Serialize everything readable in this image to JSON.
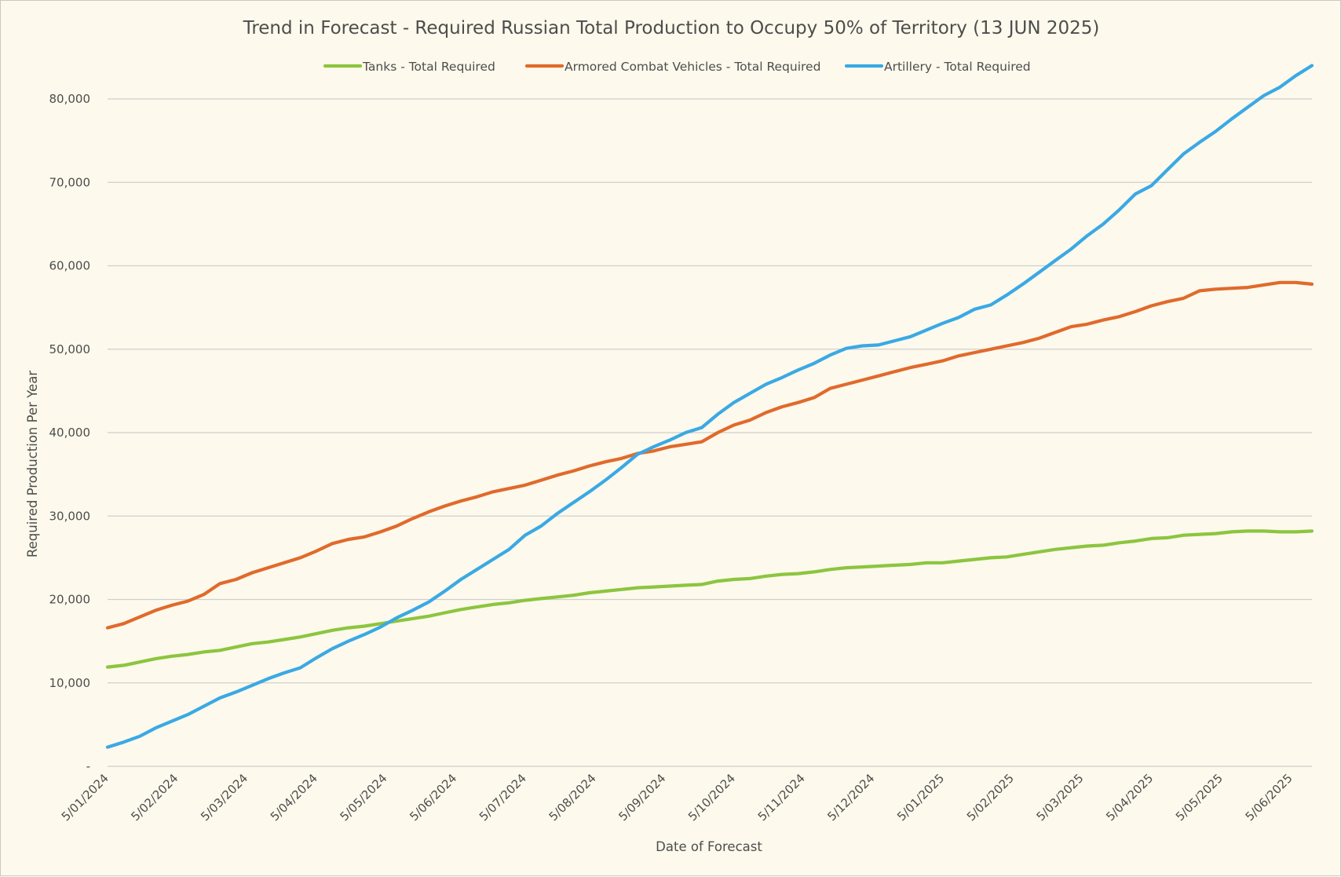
{
  "chart_data": {
    "type": "line",
    "title": "Trend in Forecast - Required Russian Total Production to Occupy 50% of Territory (13 JUN 2025)",
    "xlabel": "Date of Forecast",
    "ylabel": "Required Production Per Year",
    "ylim": [
      0,
      80000
    ],
    "yticks": [
      {
        "value": 0,
        "label": "-"
      },
      {
        "value": 10000,
        "label": "10,000"
      },
      {
        "value": 20000,
        "label": "20,000"
      },
      {
        "value": 30000,
        "label": "30,000"
      },
      {
        "value": 40000,
        "label": "40,000"
      },
      {
        "value": 50000,
        "label": "50,000"
      },
      {
        "value": 60000,
        "label": "60,000"
      },
      {
        "value": 70000,
        "label": "70,000"
      },
      {
        "value": 80000,
        "label": "80,000"
      }
    ],
    "xtick_labels": [
      "5/01/2024",
      "5/02/2024",
      "5/03/2024",
      "5/04/2024",
      "5/05/2024",
      "5/06/2024",
      "5/07/2024",
      "5/08/2024",
      "5/09/2024",
      "5/10/2024",
      "5/11/2024",
      "5/12/2024",
      "5/01/2025",
      "5/02/2025",
      "5/03/2025",
      "5/04/2025",
      "5/05/2025",
      "5/06/2025"
    ],
    "legend_position": "top",
    "grid": true,
    "categories": [
      "5/01/2024",
      "12/01/2024",
      "19/01/2024",
      "26/01/2024",
      "2/02/2024",
      "9/02/2024",
      "16/02/2024",
      "23/02/2024",
      "1/03/2024",
      "8/03/2024",
      "15/03/2024",
      "22/03/2024",
      "29/03/2024",
      "5/04/2024",
      "12/04/2024",
      "19/04/2024",
      "26/04/2024",
      "3/05/2024",
      "10/05/2024",
      "17/05/2024",
      "24/05/2024",
      "31/05/2024",
      "7/06/2024",
      "14/06/2024",
      "21/06/2024",
      "28/06/2024",
      "5/07/2024",
      "12/07/2024",
      "19/07/2024",
      "26/07/2024",
      "2/08/2024",
      "9/08/2024",
      "16/08/2024",
      "23/08/2024",
      "30/08/2024",
      "6/09/2024",
      "13/09/2024",
      "20/09/2024",
      "27/09/2024",
      "4/10/2024",
      "11/10/2024",
      "18/10/2024",
      "25/10/2024",
      "1/11/2024",
      "8/11/2024",
      "15/11/2024",
      "22/11/2024",
      "29/11/2024",
      "6/12/2024",
      "13/12/2024",
      "20/12/2024",
      "27/12/2024",
      "3/01/2025",
      "10/01/2025",
      "17/01/2025",
      "24/01/2025",
      "31/01/2025",
      "7/02/2025",
      "14/02/2025",
      "21/02/2025",
      "28/02/2025",
      "7/03/2025",
      "14/03/2025",
      "21/03/2025",
      "28/03/2025",
      "4/04/2025",
      "11/04/2025",
      "18/04/2025",
      "25/04/2025",
      "2/05/2025",
      "9/05/2025",
      "16/05/2025",
      "23/05/2025",
      "30/05/2025",
      "6/06/2025",
      "13/06/2025"
    ],
    "series": [
      {
        "name": "Tanks - Total Required",
        "color": "#8cc53f",
        "values": [
          11900,
          12100,
          12500,
          12900,
          13200,
          13400,
          13700,
          13900,
          14300,
          14700,
          14900,
          15200,
          15500,
          15900,
          16300,
          16600,
          16800,
          17100,
          17400,
          17700,
          18000,
          18400,
          18800,
          19100,
          19400,
          19600,
          19900,
          20100,
          20300,
          20500,
          20800,
          21000,
          21200,
          21400,
          21500,
          21600,
          21700,
          21800,
          22200,
          22400,
          22500,
          22800,
          23000,
          23100,
          23300,
          23600,
          23800,
          23900,
          24000,
          24100,
          24200,
          24400,
          24400,
          24600,
          24800,
          25000,
          25100,
          25400,
          25700,
          26000,
          26200,
          26400,
          26500,
          26800,
          27000,
          27300,
          27400,
          27700,
          27800,
          27900,
          28100,
          28200,
          28200,
          28100,
          28100,
          28200
        ]
      },
      {
        "name": "Armored Combat Vehicles - Total Required",
        "color": "#e06a2c",
        "values": [
          16600,
          17100,
          17900,
          18700,
          19300,
          19800,
          20600,
          21900,
          22400,
          23200,
          23800,
          24400,
          25000,
          25800,
          26700,
          27200,
          27500,
          28100,
          28800,
          29700,
          30500,
          31200,
          31800,
          32300,
          32900,
          33300,
          33700,
          34300,
          34900,
          35400,
          36000,
          36500,
          36900,
          37500,
          37800,
          38300,
          38600,
          38900,
          40000,
          40900,
          41500,
          42400,
          43100,
          43600,
          44200,
          45300,
          45800,
          46300,
          46800,
          47300,
          47800,
          48200,
          48600,
          49200,
          49600,
          50000,
          50400,
          50800,
          51300,
          52000,
          52700,
          53000,
          53500,
          53900,
          54500,
          55200,
          55700,
          56100,
          57000,
          57200,
          57300,
          57400,
          57700,
          58000,
          58000,
          57800
        ]
      },
      {
        "name": "Artillery - Total Required",
        "color": "#3aa9e4",
        "values": [
          2300,
          2900,
          3600,
          4600,
          5400,
          6200,
          7200,
          8200,
          8900,
          9700,
          10500,
          11200,
          11800,
          13000,
          14100,
          15000,
          15800,
          16700,
          17800,
          18700,
          19700,
          21000,
          22400,
          23600,
          24800,
          26000,
          27700,
          28800,
          30300,
          31600,
          32900,
          34300,
          35800,
          37400,
          38300,
          39100,
          40000,
          40600,
          42200,
          43600,
          44700,
          45800,
          46600,
          47500,
          48300,
          49300,
          50100,
          50400,
          50500,
          51000,
          51500,
          52300,
          53100,
          53800,
          54800,
          55300,
          56500,
          57800,
          59200,
          60600,
          62000,
          63600,
          65000,
          66700,
          68600,
          69600,
          71500,
          73400,
          74800,
          76100,
          77600,
          79000,
          80400,
          81400,
          82800,
          84000
        ]
      }
    ]
  }
}
